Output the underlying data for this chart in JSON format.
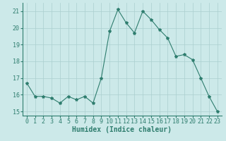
{
  "x": [
    0,
    1,
    2,
    3,
    4,
    5,
    6,
    7,
    8,
    9,
    10,
    11,
    12,
    13,
    14,
    15,
    16,
    17,
    18,
    19,
    20,
    21,
    22,
    23
  ],
  "y": [
    16.7,
    15.9,
    15.9,
    15.8,
    15.5,
    15.9,
    15.7,
    15.9,
    15.5,
    17.0,
    19.8,
    21.1,
    20.3,
    19.7,
    21.0,
    20.5,
    19.9,
    19.4,
    18.3,
    18.4,
    18.1,
    17.0,
    15.9,
    15.0
  ],
  "line_color": "#2e7d6e",
  "marker": "*",
  "marker_size": 3,
  "bg_color": "#cce9e9",
  "grid_color": "#aacfcf",
  "xlabel": "Humidex (Indice chaleur)",
  "xlabel_fontsize": 7,
  "tick_fontsize": 6,
  "xlim": [
    -0.5,
    23.5
  ],
  "ylim": [
    14.75,
    21.5
  ],
  "yticks": [
    15,
    16,
    17,
    18,
    19,
    20,
    21
  ],
  "xticks": [
    0,
    1,
    2,
    3,
    4,
    5,
    6,
    7,
    8,
    9,
    10,
    11,
    12,
    13,
    14,
    15,
    16,
    17,
    18,
    19,
    20,
    21,
    22,
    23
  ]
}
